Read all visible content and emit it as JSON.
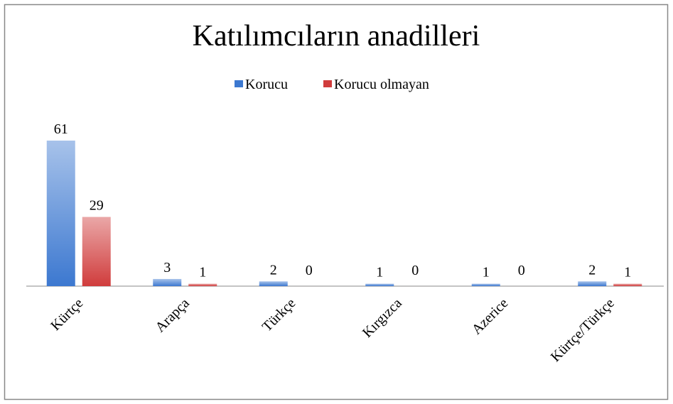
{
  "chart_data": {
    "type": "bar",
    "title": "Katılımcıların anadilleri",
    "categories": [
      "Kürtçe",
      "Arapça",
      "Türkçe",
      "Kırgızca",
      "Azerice",
      "Kürtçe/Türkçe"
    ],
    "series": [
      {
        "name": "Korucu",
        "color": "#3c78d0",
        "values": [
          61,
          3,
          2,
          1,
          1,
          2
        ]
      },
      {
        "name": "Korucu olmayan",
        "color": "#d03c3c",
        "values": [
          29,
          1,
          0,
          0,
          0,
          1
        ]
      }
    ],
    "legend": "top"
  }
}
